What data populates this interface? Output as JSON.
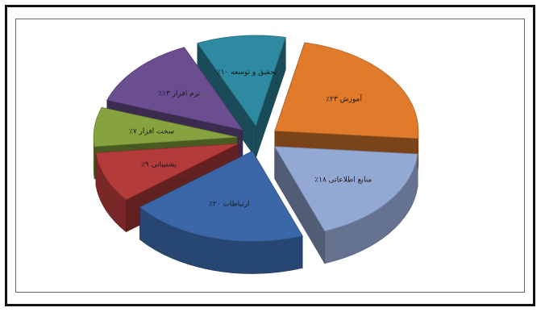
{
  "chart_data": {
    "type": "pie",
    "variant": "exploded-3d",
    "title": "",
    "legend": "none",
    "slices": [
      {
        "label": "آموزش ۲۳٪",
        "value": 23,
        "color": "#E07B2C"
      },
      {
        "label": "منابع اطلاعاتی ۱۸٪",
        "value": 18,
        "color": "#94A8D4"
      },
      {
        "label": "ارتباطات ۲۰٪",
        "value": 20,
        "color": "#3B67A8"
      },
      {
        "label": "پشتیبانی ۹٪",
        "value": 9,
        "color": "#B33B3A"
      },
      {
        "label": "سخت افزار ۷٪",
        "value": 7,
        "color": "#86A33F"
      },
      {
        "label": "نرم افزار ۱۳٪",
        "value": 13,
        "color": "#6A4E8F"
      },
      {
        "label": "تحقیق و توسعه ۱۰٪",
        "value": 10,
        "color": "#2D8AA0"
      }
    ]
  }
}
